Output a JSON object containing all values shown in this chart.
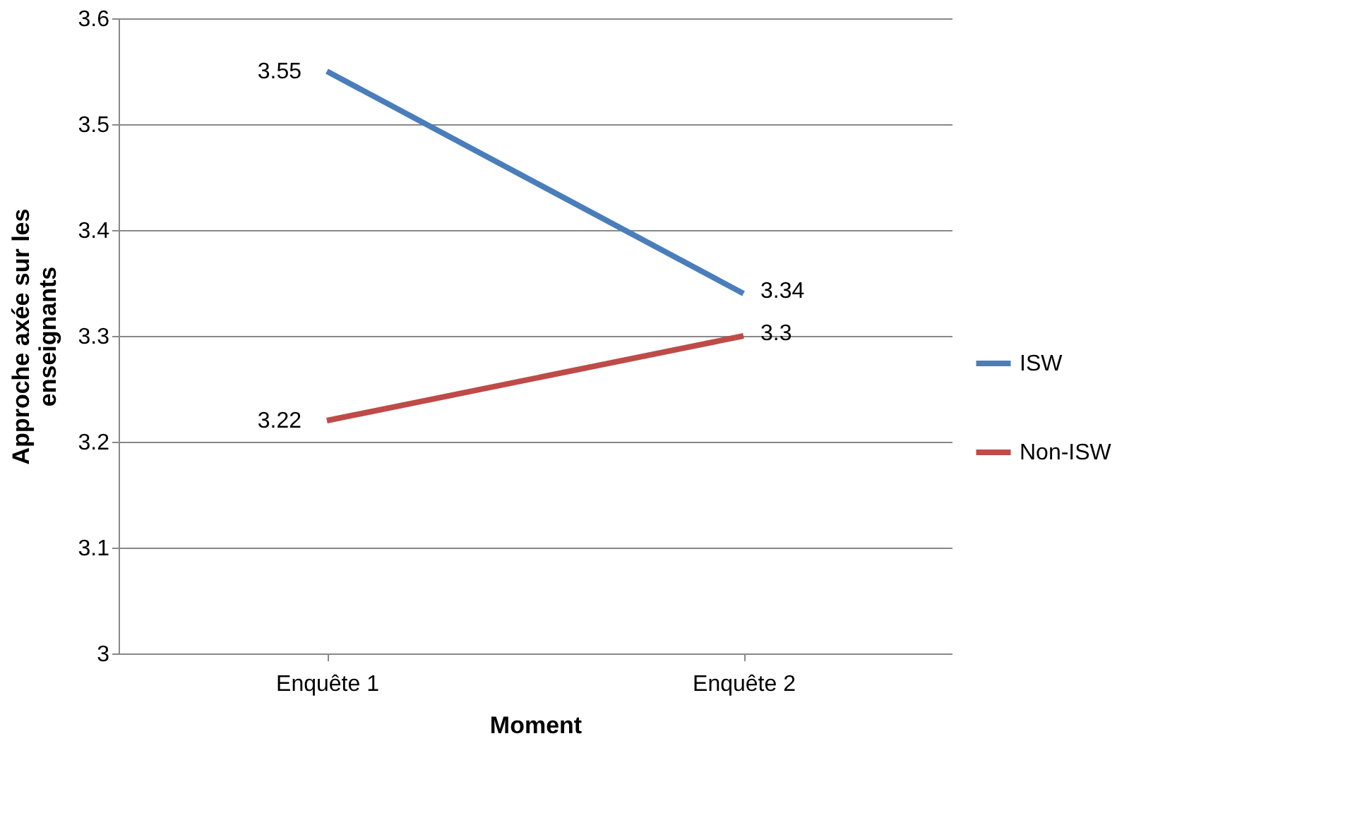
{
  "chart_data": {
    "type": "line",
    "xlabel": "Moment",
    "ylabel": "Approche axée sur les enseignants",
    "categories": [
      "Enquête 1",
      "Enquête 2"
    ],
    "series": [
      {
        "name": "ISW",
        "color": "#4a7ebb",
        "values": [
          3.55,
          3.34
        ]
      },
      {
        "name": "Non-ISW",
        "color": "#be4b48",
        "values": [
          3.22,
          3.3
        ]
      }
    ],
    "ylim": [
      3,
      3.6
    ],
    "yticks": [
      3,
      3.1,
      3.2,
      3.3,
      3.4,
      3.5,
      3.6
    ],
    "grid": "y",
    "legend": "right",
    "data_labels": true,
    "marker": "none",
    "line_style": "solid"
  }
}
